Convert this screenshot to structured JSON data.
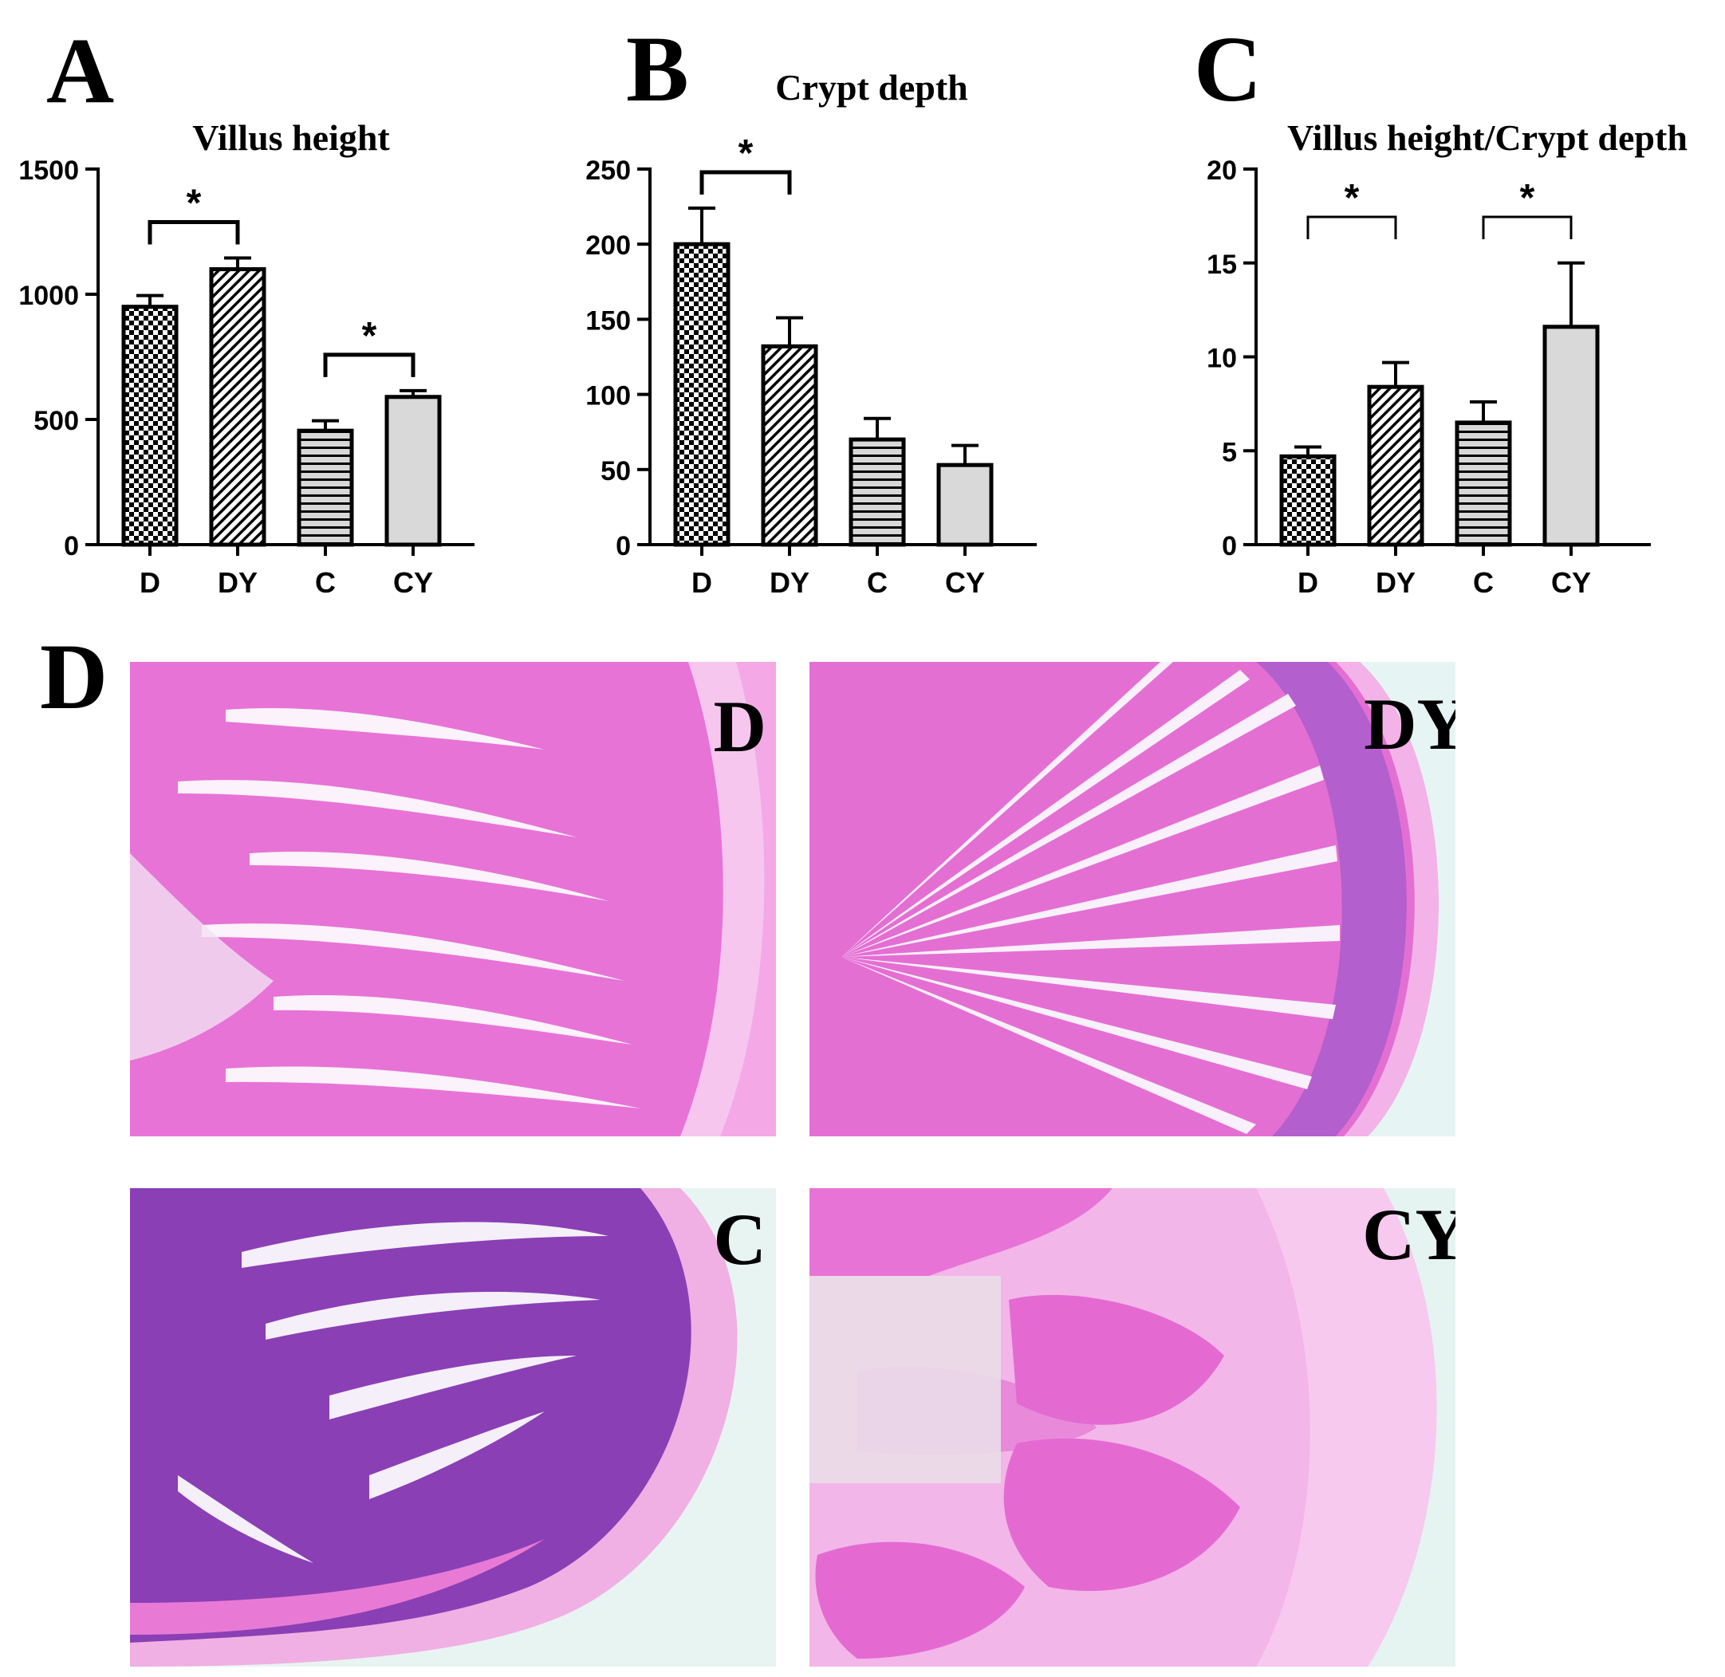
{
  "panels": {
    "A": {
      "letter": "A"
    },
    "B": {
      "letter": "B"
    },
    "C": {
      "letter": "C"
    },
    "D": {
      "letter": "D"
    }
  },
  "chart_data": [
    {
      "type": "bar",
      "title": "Villus height",
      "categories": [
        "D",
        "DY",
        "C",
        "CY"
      ],
      "values": [
        950,
        1100,
        455,
        590
      ],
      "errors": [
        45,
        45,
        40,
        25
      ],
      "ylim": [
        0,
        1500
      ],
      "yticks": [
        0,
        500,
        1000,
        1500
      ],
      "significance": [
        {
          "from": 0,
          "to": 1,
          "label": "*"
        },
        {
          "from": 2,
          "to": 3,
          "label": "*"
        }
      ]
    },
    {
      "type": "bar",
      "title": "Crypt depth",
      "categories": [
        "D",
        "DY",
        "C",
        "CY"
      ],
      "values": [
        200,
        132,
        70,
        53
      ],
      "errors": [
        24,
        19,
        14,
        13
      ],
      "ylim": [
        0,
        250
      ],
      "yticks": [
        0,
        50,
        100,
        150,
        200,
        250
      ],
      "significance": [
        {
          "from": 0,
          "to": 1,
          "label": "*"
        }
      ]
    },
    {
      "type": "bar",
      "title": "Villus height/Crypt depth",
      "categories": [
        "D",
        "DY",
        "C",
        "CY"
      ],
      "values": [
        4.7,
        8.4,
        6.5,
        11.6
      ],
      "errors": [
        0.5,
        1.3,
        1.1,
        3.4
      ],
      "ylim": [
        0,
        20
      ],
      "yticks": [
        0,
        5,
        10,
        15,
        20
      ],
      "significance": [
        {
          "from": 0,
          "to": 1,
          "label": "*"
        },
        {
          "from": 2,
          "to": 3,
          "label": "*"
        }
      ]
    }
  ],
  "micrographs": [
    {
      "label": "D"
    },
    {
      "label": "DY"
    },
    {
      "label": "C"
    },
    {
      "label": "CY"
    }
  ],
  "colors": {
    "bar_fill_solid": "#d9d9d9",
    "tissue_pink": "#e86fd6",
    "tissue_purple": "#8e3db8",
    "background_slide": "#e9f6f4"
  }
}
